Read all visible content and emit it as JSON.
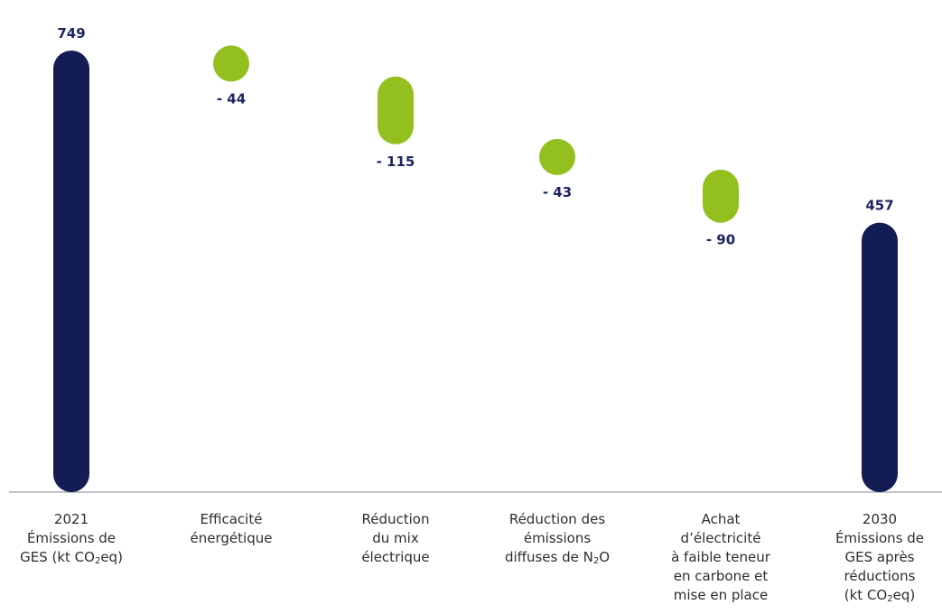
{
  "chart_data": {
    "type": "bar",
    "subtype": "waterfall",
    "categories": [
      [
        "2021",
        "Émissions de",
        "GES (kt CO_2eq)"
      ],
      [
        "Efficacité",
        "énergétique"
      ],
      [
        "Réduction",
        "du mix",
        "électrique"
      ],
      [
        "Réduction des",
        "émissions",
        "diffuses de N_2O"
      ],
      [
        "Achat",
        "d’électricité",
        "à faible teneur",
        "en carbone et",
        "mise en place"
      ],
      [
        "2030",
        "Émissions de",
        "GES après",
        "réductions",
        "(kt CO_2eq)"
      ]
    ],
    "steps": [
      {
        "kind": "total",
        "value": 749,
        "label": "749"
      },
      {
        "kind": "decrease",
        "value": -44,
        "label": "- 44"
      },
      {
        "kind": "decrease",
        "value": -115,
        "label": "- 115"
      },
      {
        "kind": "decrease",
        "value": -43,
        "label": "- 43"
      },
      {
        "kind": "decrease",
        "value": -90,
        "label": "- 90"
      },
      {
        "kind": "total",
        "value": 457,
        "label": "457"
      }
    ],
    "ylim": [
      0,
      749
    ],
    "grid": false,
    "legend": "none",
    "colors": {
      "total": "#141c54",
      "decrease": "#93c01f",
      "value_text": "#1d2461",
      "axis": "#9c9ca4"
    }
  }
}
